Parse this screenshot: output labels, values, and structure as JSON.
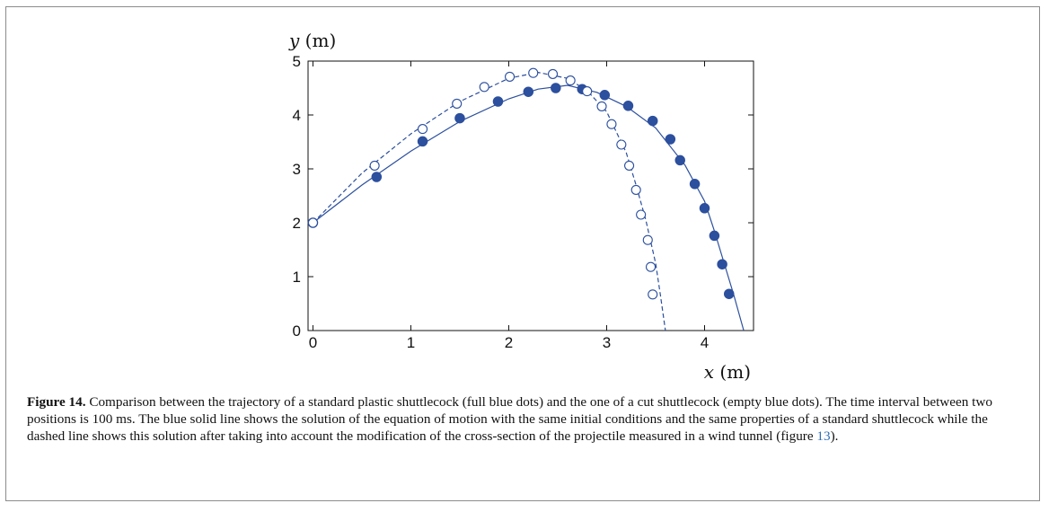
{
  "chart_data": {
    "type": "scatter",
    "xlabel": "x (m)",
    "ylabel": "y (m)",
    "xlim": [
      -0.05,
      4.5
    ],
    "ylim": [
      0,
      5
    ],
    "x_ticks": [
      "0",
      "1",
      "2",
      "3",
      "4"
    ],
    "y_ticks": [
      "0",
      "1",
      "2",
      "3",
      "4",
      "5"
    ],
    "grid": false,
    "color": "#2c4f9e",
    "series": [
      {
        "marker": "filled-circle",
        "points": [
          [
            0.0,
            2.0
          ],
          [
            0.65,
            2.85
          ],
          [
            1.12,
            3.51
          ],
          [
            1.5,
            3.94
          ],
          [
            1.89,
            4.25
          ],
          [
            2.2,
            4.43
          ],
          [
            2.48,
            4.5
          ],
          [
            2.75,
            4.48
          ],
          [
            2.98,
            4.37
          ],
          [
            3.22,
            4.17
          ],
          [
            3.47,
            3.89
          ],
          [
            3.65,
            3.55
          ],
          [
            3.75,
            3.16
          ],
          [
            3.9,
            2.72
          ],
          [
            4.0,
            2.27
          ],
          [
            4.1,
            1.76
          ],
          [
            4.18,
            1.23
          ],
          [
            4.25,
            0.68
          ]
        ]
      },
      {
        "marker": "open-circle",
        "points": [
          [
            0.0,
            2.0
          ],
          [
            0.63,
            3.06
          ],
          [
            1.12,
            3.74
          ],
          [
            1.47,
            4.21
          ],
          [
            1.75,
            4.52
          ],
          [
            2.01,
            4.71
          ],
          [
            2.25,
            4.78
          ],
          [
            2.45,
            4.76
          ],
          [
            2.63,
            4.64
          ],
          [
            2.8,
            4.44
          ],
          [
            2.95,
            4.16
          ],
          [
            3.05,
            3.83
          ],
          [
            3.15,
            3.45
          ],
          [
            3.23,
            3.06
          ],
          [
            3.3,
            2.61
          ],
          [
            3.35,
            2.15
          ],
          [
            3.42,
            1.68
          ],
          [
            3.45,
            1.18
          ],
          [
            3.47,
            0.67
          ]
        ]
      },
      {
        "style": "solid-line",
        "points": [
          [
            0.0,
            2.0
          ],
          [
            0.5,
            2.7
          ],
          [
            1.0,
            3.33
          ],
          [
            1.5,
            3.88
          ],
          [
            2.0,
            4.3
          ],
          [
            2.3,
            4.48
          ],
          [
            2.6,
            4.55
          ],
          [
            2.9,
            4.42
          ],
          [
            3.2,
            4.16
          ],
          [
            3.5,
            3.76
          ],
          [
            3.8,
            3.07
          ],
          [
            4.0,
            2.4
          ],
          [
            4.1,
            1.85
          ],
          [
            4.2,
            1.25
          ],
          [
            4.3,
            0.65
          ],
          [
            4.4,
            0.0
          ]
        ]
      },
      {
        "style": "dashed-line",
        "points": [
          [
            0.0,
            2.0
          ],
          [
            0.5,
            2.92
          ],
          [
            1.0,
            3.65
          ],
          [
            1.5,
            4.25
          ],
          [
            2.0,
            4.68
          ],
          [
            2.3,
            4.79
          ],
          [
            2.6,
            4.68
          ],
          [
            2.8,
            4.45
          ],
          [
            3.0,
            4.06
          ],
          [
            3.2,
            3.3
          ],
          [
            3.3,
            2.7
          ],
          [
            3.4,
            2.05
          ],
          [
            3.5,
            1.25
          ],
          [
            3.55,
            0.65
          ],
          [
            3.6,
            0.0
          ]
        ]
      }
    ]
  },
  "caption": {
    "label": "Figure 14.",
    "text_1": " Comparison between the trajectory of a standard plastic shuttlecock (full blue dots) and the one of a cut shuttlecock (empty blue dots). The time interval between two positions is 100 ms. The blue solid line shows the solution of the equation of motion with the same initial conditions and the same properties of a standard shuttlecock while the dashed line shows this solution after taking into account the modification of the cross-section of the projectile measured in a wind tunnel (figure ",
    "ref": "13",
    "text_2": ")."
  }
}
